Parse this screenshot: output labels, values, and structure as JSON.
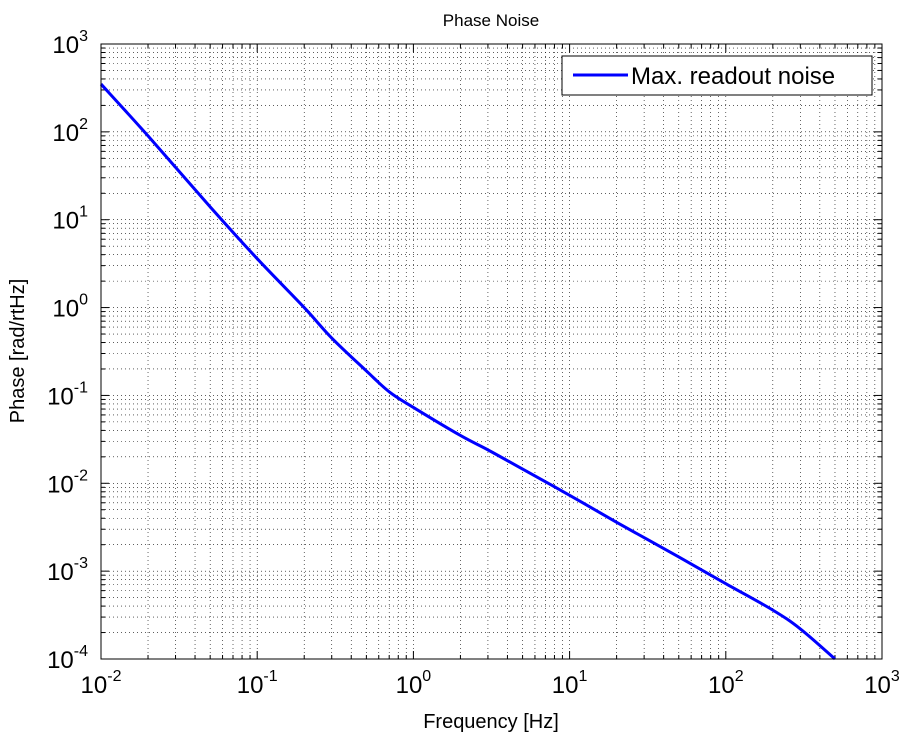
{
  "chart_data": {
    "type": "line",
    "title": "Phase Noise",
    "xlabel": "Frequency [Hz]",
    "ylabel": "Phase [rad/rtHz]",
    "x_scale": "log",
    "y_scale": "log",
    "xlim": [
      0.01,
      1000
    ],
    "ylim": [
      0.0001,
      1000
    ],
    "x_ticks": [
      {
        "base": "10",
        "exp": "-2"
      },
      {
        "base": "10",
        "exp": "-1"
      },
      {
        "base": "10",
        "exp": "0"
      },
      {
        "base": "10",
        "exp": "1"
      },
      {
        "base": "10",
        "exp": "2"
      },
      {
        "base": "10",
        "exp": "3"
      }
    ],
    "y_ticks": [
      {
        "base": "10",
        "exp": "-4"
      },
      {
        "base": "10",
        "exp": "-3"
      },
      {
        "base": "10",
        "exp": "-2"
      },
      {
        "base": "10",
        "exp": "-1"
      },
      {
        "base": "10",
        "exp": "0"
      },
      {
        "base": "10",
        "exp": "1"
      },
      {
        "base": "10",
        "exp": "2"
      },
      {
        "base": "10",
        "exp": "3"
      }
    ],
    "grid": true,
    "legend_position": "top-right",
    "series": [
      {
        "name": "Max. readout noise",
        "color": "#0000ff",
        "x": [
          0.01,
          0.02,
          0.05,
          0.1,
          0.2,
          0.3,
          0.5,
          0.7,
          1,
          2,
          3,
          5,
          10,
          20,
          50,
          100,
          200,
          300,
          500
        ],
        "y": [
          350,
          90,
          14,
          3.6,
          1.0,
          0.45,
          0.19,
          0.11,
          0.073,
          0.035,
          0.024,
          0.0145,
          0.0073,
          0.0036,
          0.00145,
          0.00072,
          0.00036,
          0.00022,
          0.0001
        ]
      }
    ]
  }
}
